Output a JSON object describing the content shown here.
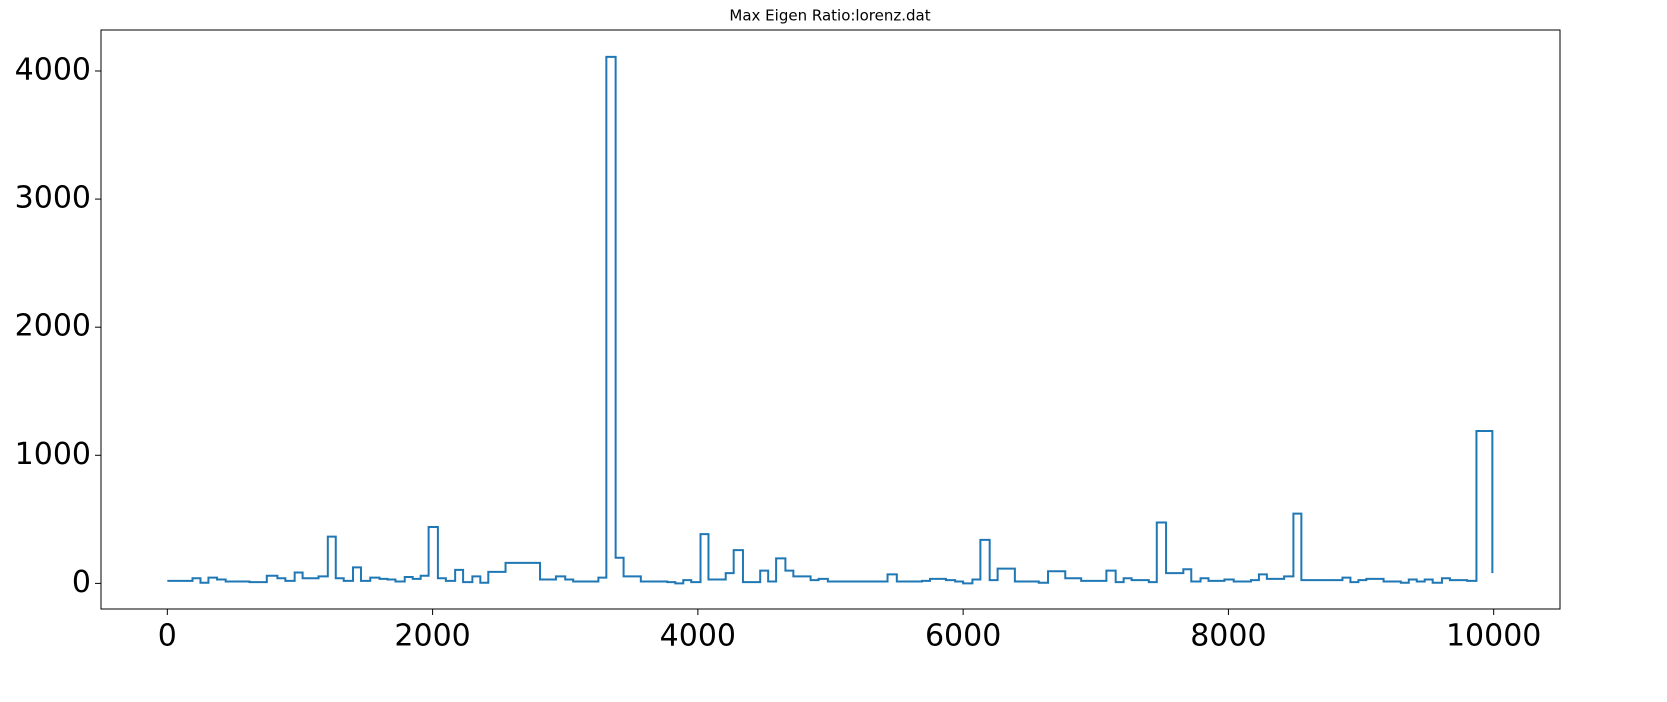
{
  "chart_data": {
    "type": "step",
    "title": "Max Eigen Ratio:lorenz.dat",
    "color": "#1f77b4",
    "x": [
      0,
      190,
      250,
      310,
      375,
      440,
      620,
      750,
      830,
      890,
      960,
      1020,
      1140,
      1210,
      1270,
      1330,
      1400,
      1460,
      1530,
      1600,
      1660,
      1720,
      1790,
      1850,
      1910,
      1970,
      2040,
      2100,
      2170,
      2230,
      2300,
      2360,
      2420,
      2550,
      2810,
      2930,
      3000,
      3060,
      3250,
      3310,
      3380,
      3440,
      3570,
      3770,
      3830,
      3890,
      3950,
      4020,
      4080,
      4210,
      4270,
      4340,
      4470,
      4530,
      4590,
      4660,
      4720,
      4850,
      4910,
      4980,
      5430,
      5500,
      5690,
      5750,
      5870,
      5940,
      6000,
      6070,
      6130,
      6200,
      6260,
      6390,
      6570,
      6640,
      6770,
      6890,
      7080,
      7150,
      7210,
      7270,
      7400,
      7460,
      7530,
      7660,
      7720,
      7790,
      7850,
      7970,
      8040,
      8170,
      8230,
      8290,
      8420,
      8490,
      8550,
      8860,
      8920,
      8980,
      9040,
      9170,
      9300,
      9360,
      9420,
      9480,
      9540,
      9610,
      9670,
      9800,
      9870,
      9990
    ],
    "values": [
      20,
      40,
      5,
      45,
      30,
      15,
      10,
      60,
      40,
      20,
      85,
      40,
      55,
      365,
      40,
      20,
      125,
      20,
      45,
      35,
      30,
      15,
      50,
      35,
      60,
      440,
      40,
      20,
      105,
      10,
      55,
      5,
      90,
      160,
      30,
      55,
      30,
      15,
      45,
      4110,
      200,
      55,
      15,
      10,
      0,
      25,
      10,
      385,
      30,
      80,
      260,
      10,
      100,
      15,
      195,
      100,
      55,
      25,
      35,
      15,
      70,
      15,
      20,
      35,
      25,
      15,
      0,
      30,
      340,
      25,
      115,
      15,
      5,
      95,
      40,
      20,
      100,
      10,
      40,
      25,
      10,
      475,
      80,
      110,
      15,
      40,
      20,
      30,
      15,
      25,
      70,
      35,
      55,
      545,
      25,
      45,
      10,
      25,
      35,
      15,
      5,
      30,
      15,
      30,
      5,
      40,
      25,
      20,
      1190,
      80
    ],
    "xlim": [
      -500,
      10500
    ],
    "ylim": [
      -200,
      4320
    ],
    "xticks": [
      0,
      2000,
      4000,
      6000,
      8000,
      10000
    ],
    "yticks": [
      0,
      1000,
      2000,
      3000,
      4000
    ],
    "grid": false
  }
}
